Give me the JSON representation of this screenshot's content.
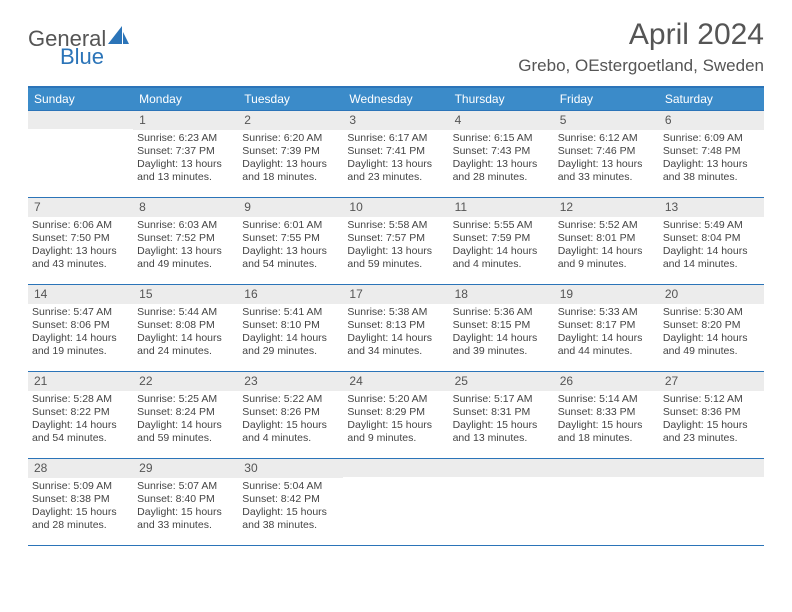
{
  "logo": {
    "text1": "General",
    "text2": "Blue",
    "accent_color": "#2b74b8"
  },
  "title": "April 2024",
  "location": "Grebo, OEstergoetland, Sweden",
  "header_bg": "#3b8bc9",
  "rule_color": "#2b74b8",
  "numbar_bg": "#ececec",
  "dow": [
    "Sunday",
    "Monday",
    "Tuesday",
    "Wednesday",
    "Thursday",
    "Friday",
    "Saturday"
  ],
  "weeks": [
    [
      {
        "n": "",
        "sunrise": "",
        "sunset": "",
        "daylight": ""
      },
      {
        "n": "1",
        "sunrise": "Sunrise: 6:23 AM",
        "sunset": "Sunset: 7:37 PM",
        "daylight": "Daylight: 13 hours and 13 minutes."
      },
      {
        "n": "2",
        "sunrise": "Sunrise: 6:20 AM",
        "sunset": "Sunset: 7:39 PM",
        "daylight": "Daylight: 13 hours and 18 minutes."
      },
      {
        "n": "3",
        "sunrise": "Sunrise: 6:17 AM",
        "sunset": "Sunset: 7:41 PM",
        "daylight": "Daylight: 13 hours and 23 minutes."
      },
      {
        "n": "4",
        "sunrise": "Sunrise: 6:15 AM",
        "sunset": "Sunset: 7:43 PM",
        "daylight": "Daylight: 13 hours and 28 minutes."
      },
      {
        "n": "5",
        "sunrise": "Sunrise: 6:12 AM",
        "sunset": "Sunset: 7:46 PM",
        "daylight": "Daylight: 13 hours and 33 minutes."
      },
      {
        "n": "6",
        "sunrise": "Sunrise: 6:09 AM",
        "sunset": "Sunset: 7:48 PM",
        "daylight": "Daylight: 13 hours and 38 minutes."
      }
    ],
    [
      {
        "n": "7",
        "sunrise": "Sunrise: 6:06 AM",
        "sunset": "Sunset: 7:50 PM",
        "daylight": "Daylight: 13 hours and 43 minutes."
      },
      {
        "n": "8",
        "sunrise": "Sunrise: 6:03 AM",
        "sunset": "Sunset: 7:52 PM",
        "daylight": "Daylight: 13 hours and 49 minutes."
      },
      {
        "n": "9",
        "sunrise": "Sunrise: 6:01 AM",
        "sunset": "Sunset: 7:55 PM",
        "daylight": "Daylight: 13 hours and 54 minutes."
      },
      {
        "n": "10",
        "sunrise": "Sunrise: 5:58 AM",
        "sunset": "Sunset: 7:57 PM",
        "daylight": "Daylight: 13 hours and 59 minutes."
      },
      {
        "n": "11",
        "sunrise": "Sunrise: 5:55 AM",
        "sunset": "Sunset: 7:59 PM",
        "daylight": "Daylight: 14 hours and 4 minutes."
      },
      {
        "n": "12",
        "sunrise": "Sunrise: 5:52 AM",
        "sunset": "Sunset: 8:01 PM",
        "daylight": "Daylight: 14 hours and 9 minutes."
      },
      {
        "n": "13",
        "sunrise": "Sunrise: 5:49 AM",
        "sunset": "Sunset: 8:04 PM",
        "daylight": "Daylight: 14 hours and 14 minutes."
      }
    ],
    [
      {
        "n": "14",
        "sunrise": "Sunrise: 5:47 AM",
        "sunset": "Sunset: 8:06 PM",
        "daylight": "Daylight: 14 hours and 19 minutes."
      },
      {
        "n": "15",
        "sunrise": "Sunrise: 5:44 AM",
        "sunset": "Sunset: 8:08 PM",
        "daylight": "Daylight: 14 hours and 24 minutes."
      },
      {
        "n": "16",
        "sunrise": "Sunrise: 5:41 AM",
        "sunset": "Sunset: 8:10 PM",
        "daylight": "Daylight: 14 hours and 29 minutes."
      },
      {
        "n": "17",
        "sunrise": "Sunrise: 5:38 AM",
        "sunset": "Sunset: 8:13 PM",
        "daylight": "Daylight: 14 hours and 34 minutes."
      },
      {
        "n": "18",
        "sunrise": "Sunrise: 5:36 AM",
        "sunset": "Sunset: 8:15 PM",
        "daylight": "Daylight: 14 hours and 39 minutes."
      },
      {
        "n": "19",
        "sunrise": "Sunrise: 5:33 AM",
        "sunset": "Sunset: 8:17 PM",
        "daylight": "Daylight: 14 hours and 44 minutes."
      },
      {
        "n": "20",
        "sunrise": "Sunrise: 5:30 AM",
        "sunset": "Sunset: 8:20 PM",
        "daylight": "Daylight: 14 hours and 49 minutes."
      }
    ],
    [
      {
        "n": "21",
        "sunrise": "Sunrise: 5:28 AM",
        "sunset": "Sunset: 8:22 PM",
        "daylight": "Daylight: 14 hours and 54 minutes."
      },
      {
        "n": "22",
        "sunrise": "Sunrise: 5:25 AM",
        "sunset": "Sunset: 8:24 PM",
        "daylight": "Daylight: 14 hours and 59 minutes."
      },
      {
        "n": "23",
        "sunrise": "Sunrise: 5:22 AM",
        "sunset": "Sunset: 8:26 PM",
        "daylight": "Daylight: 15 hours and 4 minutes."
      },
      {
        "n": "24",
        "sunrise": "Sunrise: 5:20 AM",
        "sunset": "Sunset: 8:29 PM",
        "daylight": "Daylight: 15 hours and 9 minutes."
      },
      {
        "n": "25",
        "sunrise": "Sunrise: 5:17 AM",
        "sunset": "Sunset: 8:31 PM",
        "daylight": "Daylight: 15 hours and 13 minutes."
      },
      {
        "n": "26",
        "sunrise": "Sunrise: 5:14 AM",
        "sunset": "Sunset: 8:33 PM",
        "daylight": "Daylight: 15 hours and 18 minutes."
      },
      {
        "n": "27",
        "sunrise": "Sunrise: 5:12 AM",
        "sunset": "Sunset: 8:36 PM",
        "daylight": "Daylight: 15 hours and 23 minutes."
      }
    ],
    [
      {
        "n": "28",
        "sunrise": "Sunrise: 5:09 AM",
        "sunset": "Sunset: 8:38 PM",
        "daylight": "Daylight: 15 hours and 28 minutes."
      },
      {
        "n": "29",
        "sunrise": "Sunrise: 5:07 AM",
        "sunset": "Sunset: 8:40 PM",
        "daylight": "Daylight: 15 hours and 33 minutes."
      },
      {
        "n": "30",
        "sunrise": "Sunrise: 5:04 AM",
        "sunset": "Sunset: 8:42 PM",
        "daylight": "Daylight: 15 hours and 38 minutes."
      },
      {
        "n": "",
        "sunrise": "",
        "sunset": "",
        "daylight": ""
      },
      {
        "n": "",
        "sunrise": "",
        "sunset": "",
        "daylight": ""
      },
      {
        "n": "",
        "sunrise": "",
        "sunset": "",
        "daylight": ""
      },
      {
        "n": "",
        "sunrise": "",
        "sunset": "",
        "daylight": ""
      }
    ]
  ]
}
